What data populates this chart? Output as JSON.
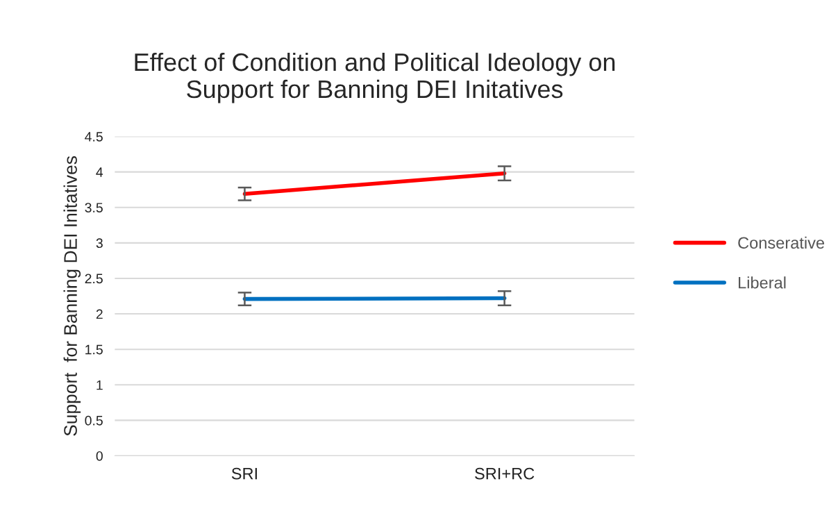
{
  "chart_data": {
    "type": "line",
    "title": "Effect of Condition and Political Ideology on\nSupport for Banning DEI Initatives",
    "ylabel": "Support  for Banning DEI Initatives",
    "categories": [
      "SRI",
      "SRI+RC"
    ],
    "series": [
      {
        "name": "Conserative",
        "color": "#ff0000",
        "values": [
          3.69,
          3.98
        ],
        "errors": [
          0.09,
          0.1
        ]
      },
      {
        "name": "Liberal",
        "color": "#0070c0",
        "values": [
          2.21,
          2.22
        ],
        "errors": [
          0.09,
          0.1
        ]
      }
    ],
    "ylim": [
      0,
      4.5
    ],
    "yticks": [
      0,
      0.5,
      1,
      1.5,
      2,
      2.5,
      3,
      3.5,
      4,
      4.5
    ],
    "grid": "y",
    "legend": "right",
    "marker": "none",
    "line_style": "solid"
  }
}
